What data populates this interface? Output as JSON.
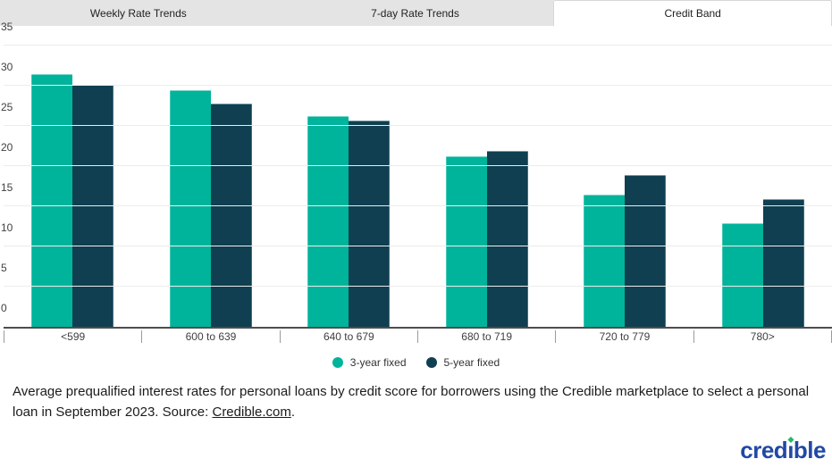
{
  "tabs": [
    {
      "label": "Weekly Rate Trends",
      "active": false
    },
    {
      "label": "7-day Rate Trends",
      "active": false
    },
    {
      "label": "Credit Band",
      "active": true
    }
  ],
  "chart_data": {
    "type": "bar",
    "categories": [
      "<599",
      "600 to 639",
      "640 to 679",
      "680 to 719",
      "720 to 779",
      "780>"
    ],
    "series": [
      {
        "name": "3-year fixed",
        "color": "#00b39b",
        "values": [
          31.4,
          29.4,
          26.2,
          21.2,
          16.5,
          12.9
        ]
      },
      {
        "name": "5-year fixed",
        "color": "#0f3f50",
        "values": [
          30.1,
          27.8,
          25.7,
          21.9,
          18.9,
          15.9
        ]
      }
    ],
    "ylabel": "",
    "xlabel": "",
    "ylim": [
      0,
      35
    ],
    "yticks": [
      0,
      5,
      10,
      15,
      20,
      25,
      30,
      35
    ],
    "grid": true,
    "legend_position": "bottom"
  },
  "caption": {
    "text_before_link": "Average prequalified interest rates for personal loans by credit score for borrowers using the Credible marketplace to select a personal loan in September 2023. Source: ",
    "link_text": "Credible.com",
    "text_after_link": "."
  },
  "logo": {
    "part1": "cred",
    "dotless_i": "ı",
    "part2": "ble",
    "blue": "#2149a4",
    "green": "#24b768"
  }
}
